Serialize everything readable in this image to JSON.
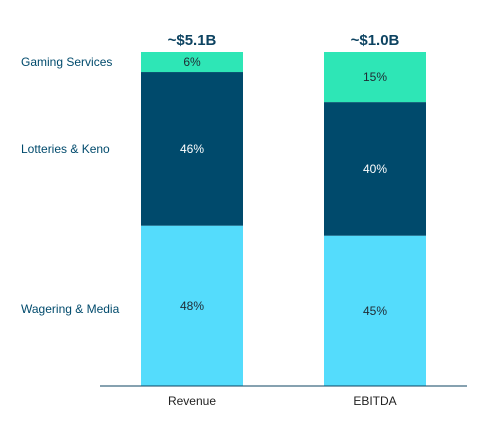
{
  "chart_data": {
    "type": "bar",
    "stacked": true,
    "value_unit": "%",
    "categories": [
      "Revenue",
      "EBITDA"
    ],
    "totals": [
      "~$5.1B",
      "~$1.0B"
    ],
    "series": [
      {
        "name": "Wagering & Media",
        "values": [
          48,
          45
        ],
        "color": "#54DCFC"
      },
      {
        "name": "Lotteries & Keno",
        "values": [
          46,
          40
        ],
        "color": "#004A6C"
      },
      {
        "name": "Gaming Services",
        "values": [
          6,
          15
        ],
        "color": "#2EE6B6"
      }
    ],
    "ylim": [
      0,
      100
    ],
    "legend_position": "left",
    "grid": false,
    "colors": {
      "total_label": "#0D4361",
      "label_on_light": "#1F2A33",
      "label_on_dark": "#FFFFFF",
      "legend_text": "#004A6C",
      "axis": "#0D4361",
      "category_label": "#222222"
    }
  }
}
